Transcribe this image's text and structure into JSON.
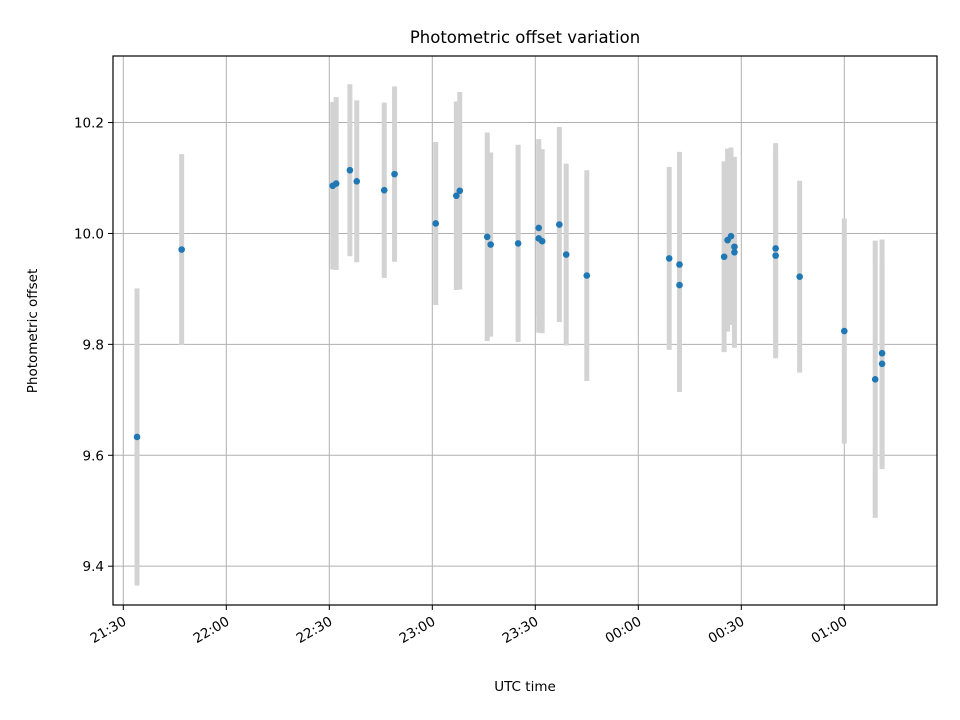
{
  "chart_data": {
    "type": "scatter",
    "title": "Photometric offset variation",
    "xlabel": "UTC time",
    "ylabel": "Photometric offset",
    "x_tick_labels": [
      "21:30",
      "22:00",
      "22:30",
      "23:00",
      "23:30",
      "00:00",
      "00:30",
      "01:00"
    ],
    "y_tick_labels": [
      "9.4",
      "9.6",
      "9.8",
      "10.0",
      "10.2"
    ],
    "xlim": [
      "21:27",
      "01:27"
    ],
    "ylim": [
      9.33,
      10.32
    ],
    "grid": true,
    "colors": {
      "point": "#1f77b4",
      "errorbar": "#d3d3d3",
      "grid": "#b0b0b0"
    },
    "points": [
      {
        "x": "21:34",
        "y": 9.633,
        "err": 0.268
      },
      {
        "x": "21:47",
        "y": 9.971,
        "err": 0.172
      },
      {
        "x": "22:31",
        "y": 10.086,
        "err": 0.151
      },
      {
        "x": "22:32",
        "y": 10.09,
        "err": 0.156
      },
      {
        "x": "22:36",
        "y": 10.114,
        "err": 0.155
      },
      {
        "x": "22:38",
        "y": 10.094,
        "err": 0.146
      },
      {
        "x": "22:46",
        "y": 10.078,
        "err": 0.158
      },
      {
        "x": "22:49",
        "y": 10.107,
        "err": 0.158
      },
      {
        "x": "23:01",
        "y": 10.018,
        "err": 0.147
      },
      {
        "x": "23:07",
        "y": 10.068,
        "err": 0.17
      },
      {
        "x": "23:08",
        "y": 10.077,
        "err": 0.178
      },
      {
        "x": "23:16",
        "y": 9.994,
        "err": 0.188
      },
      {
        "x": "23:17",
        "y": 9.98,
        "err": 0.166
      },
      {
        "x": "23:25",
        "y": 9.982,
        "err": 0.178
      },
      {
        "x": "23:31",
        "y": 9.991,
        "err": 0.17
      },
      {
        "x": "23:32",
        "y": 9.986,
        "err": 0.166
      },
      {
        "x": "23:31",
        "y": 10.01,
        "err": 0.16
      },
      {
        "x": "23:37",
        "y": 10.016,
        "err": 0.176
      },
      {
        "x": "23:39",
        "y": 9.962,
        "err": 0.164
      },
      {
        "x": "23:45",
        "y": 9.924,
        "err": 0.19
      },
      {
        "x": "00:09",
        "y": 9.955,
        "err": 0.165
      },
      {
        "x": "00:12",
        "y": 9.944,
        "err": 0.203
      },
      {
        "x": "00:12",
        "y": 9.907,
        "err": 0.193
      },
      {
        "x": "00:25",
        "y": 9.958,
        "err": 0.172
      },
      {
        "x": "00:26",
        "y": 9.988,
        "err": 0.165
      },
      {
        "x": "00:27",
        "y": 9.995,
        "err": 0.16
      },
      {
        "x": "00:28",
        "y": 9.966,
        "err": 0.172
      },
      {
        "x": "00:28",
        "y": 9.976,
        "err": 0.155
      },
      {
        "x": "00:40",
        "y": 9.973,
        "err": 0.19
      },
      {
        "x": "00:40",
        "y": 9.96,
        "err": 0.185
      },
      {
        "x": "00:47",
        "y": 9.922,
        "err": 0.173
      },
      {
        "x": "01:00",
        "y": 9.824,
        "err": 0.203
      },
      {
        "x": "01:09",
        "y": 9.737,
        "err": 0.25
      },
      {
        "x": "01:11",
        "y": 9.765,
        "err": 0.19
      },
      {
        "x": "01:11",
        "y": 9.784,
        "err": 0.205
      }
    ]
  }
}
